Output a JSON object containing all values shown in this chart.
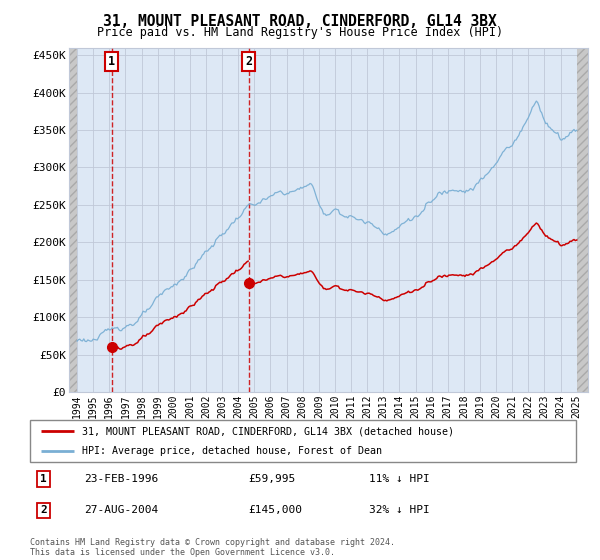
{
  "title": "31, MOUNT PLEASANT ROAD, CINDERFORD, GL14 3BX",
  "subtitle": "Price paid vs. HM Land Registry's House Price Index (HPI)",
  "ylabel_ticks": [
    0,
    50000,
    100000,
    150000,
    200000,
    250000,
    300000,
    350000,
    400000,
    450000
  ],
  "ylabel_labels": [
    "£0",
    "£50K",
    "£100K",
    "£150K",
    "£200K",
    "£250K",
    "£300K",
    "£350K",
    "£400K",
    "£450K"
  ],
  "ylim": [
    0,
    460000
  ],
  "xlim_start": 1993.5,
  "xlim_end": 2025.7,
  "sale1_date": 1996.14,
  "sale1_price": 59995,
  "sale2_date": 2004.65,
  "sale2_price": 145000,
  "sale_color": "#cc0000",
  "hpi_color": "#7aafd4",
  "legend_label1": "31, MOUNT PLEASANT ROAD, CINDERFORD, GL14 3BX (detached house)",
  "legend_label2": "HPI: Average price, detached house, Forest of Dean",
  "annotation1_label": "1",
  "annotation1_date": "23-FEB-1996",
  "annotation1_price": "£59,995",
  "annotation1_hpi": "11% ↓ HPI",
  "annotation2_label": "2",
  "annotation2_date": "27-AUG-2004",
  "annotation2_price": "£145,000",
  "annotation2_hpi": "32% ↓ HPI",
  "footnote": "Contains HM Land Registry data © Crown copyright and database right 2024.\nThis data is licensed under the Open Government Licence v3.0.",
  "background_color": "#ffffff",
  "plot_bg_color": "#dde8f5",
  "hatch_color": "#c8c8c8",
  "grid_color": "#c0c8d8"
}
